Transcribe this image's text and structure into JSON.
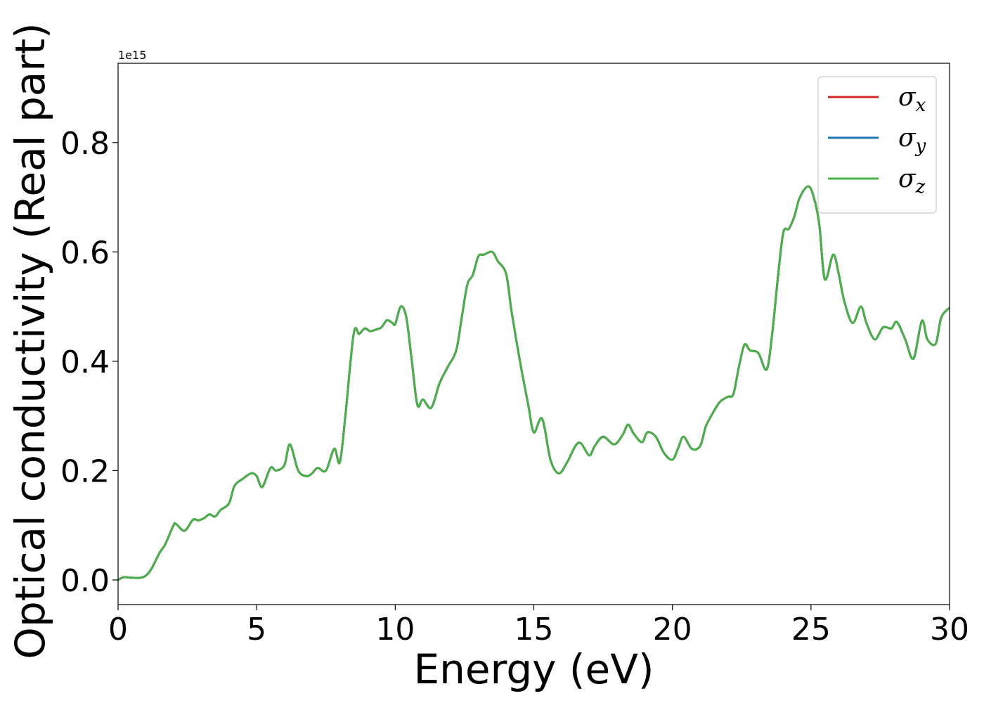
{
  "chart_data": {
    "type": "line",
    "title": "",
    "xlabel": "Energy (eV)",
    "ylabel": "Optical conductivity (Real part)",
    "y_offset_label": "1e15",
    "xlim": [
      0,
      30
    ],
    "ylim": [
      -0.045,
      0.945
    ],
    "xticks": [
      0,
      5,
      10,
      15,
      20,
      25,
      30
    ],
    "xtick_labels": [
      "0",
      "5",
      "10",
      "15",
      "20",
      "25",
      "30"
    ],
    "yticks": [
      0.0,
      0.2,
      0.4,
      0.6,
      0.8
    ],
    "ytick_labels": [
      "0.0",
      "0.2",
      "0.4",
      "0.6",
      "0.8"
    ],
    "grid": false,
    "legend_position": "top-right",
    "x": [
      0,
      0.2,
      0.5,
      0.8,
      1.0,
      1.2,
      1.5,
      1.7,
      2.0,
      2.1,
      2.4,
      2.7,
      2.9,
      3.1,
      3.3,
      3.5,
      3.7,
      4.0,
      4.2,
      4.5,
      4.8,
      5.0,
      5.2,
      5.5,
      5.7,
      6.0,
      6.2,
      6.5,
      6.8,
      7.0,
      7.2,
      7.5,
      7.8,
      8.0,
      8.2,
      8.5,
      8.7,
      8.9,
      9.1,
      9.3,
      9.5,
      9.7,
      9.9,
      10.0,
      10.2,
      10.4,
      10.6,
      10.8,
      11.0,
      11.3,
      11.6,
      11.9,
      12.2,
      12.4,
      12.6,
      12.8,
      13.0,
      13.2,
      13.5,
      13.7,
      14.0,
      14.2,
      14.5,
      14.8,
      15.0,
      15.3,
      15.6,
      15.9,
      16.2,
      16.5,
      16.7,
      17.0,
      17.2,
      17.5,
      17.9,
      18.2,
      18.4,
      18.6,
      18.9,
      19.1,
      19.4,
      19.7,
      20.0,
      20.2,
      20.4,
      20.7,
      21.0,
      21.2,
      21.4,
      21.7,
      22.0,
      22.2,
      22.4,
      22.6,
      22.8,
      23.1,
      23.4,
      23.6,
      23.8,
      24.0,
      24.2,
      24.4,
      24.6,
      24.9,
      25.1,
      25.3,
      25.5,
      25.8,
      26.0,
      26.2,
      26.5,
      26.8,
      27.0,
      27.3,
      27.6,
      27.9,
      28.1,
      28.4,
      28.7,
      29.0,
      29.2,
      29.5,
      29.7,
      30.0
    ],
    "series": [
      {
        "name": "σx",
        "color": "#d62728",
        "values": [
          0.0,
          0.005,
          0.004,
          0.004,
          0.008,
          0.02,
          0.05,
          0.065,
          0.1,
          0.102,
          0.09,
          0.11,
          0.109,
          0.113,
          0.12,
          0.116,
          0.128,
          0.14,
          0.172,
          0.185,
          0.195,
          0.19,
          0.17,
          0.205,
          0.2,
          0.21,
          0.248,
          0.2,
          0.19,
          0.195,
          0.205,
          0.2,
          0.24,
          0.215,
          0.3,
          0.45,
          0.45,
          0.46,
          0.455,
          0.458,
          0.462,
          0.475,
          0.47,
          0.468,
          0.5,
          0.48,
          0.4,
          0.32,
          0.33,
          0.315,
          0.36,
          0.39,
          0.42,
          0.48,
          0.54,
          0.558,
          0.592,
          0.595,
          0.6,
          0.583,
          0.56,
          0.49,
          0.4,
          0.32,
          0.27,
          0.295,
          0.22,
          0.195,
          0.215,
          0.245,
          0.25,
          0.228,
          0.245,
          0.262,
          0.248,
          0.265,
          0.284,
          0.268,
          0.252,
          0.27,
          0.262,
          0.232,
          0.22,
          0.24,
          0.262,
          0.24,
          0.245,
          0.28,
          0.3,
          0.325,
          0.335,
          0.34,
          0.39,
          0.43,
          0.42,
          0.415,
          0.385,
          0.45,
          0.55,
          0.635,
          0.642,
          0.665,
          0.7,
          0.72,
          0.7,
          0.65,
          0.55,
          0.595,
          0.56,
          0.51,
          0.47,
          0.5,
          0.47,
          0.44,
          0.462,
          0.46,
          0.472,
          0.44,
          0.405,
          0.474,
          0.44,
          0.432,
          0.48,
          0.498
        ]
      },
      {
        "name": "σy",
        "color": "#1f77b4",
        "values": [
          0.0,
          0.005,
          0.004,
          0.004,
          0.008,
          0.02,
          0.05,
          0.065,
          0.1,
          0.102,
          0.09,
          0.11,
          0.109,
          0.113,
          0.12,
          0.116,
          0.128,
          0.14,
          0.172,
          0.185,
          0.195,
          0.19,
          0.17,
          0.205,
          0.2,
          0.21,
          0.248,
          0.2,
          0.19,
          0.195,
          0.205,
          0.2,
          0.24,
          0.215,
          0.3,
          0.45,
          0.45,
          0.46,
          0.455,
          0.458,
          0.462,
          0.475,
          0.47,
          0.468,
          0.5,
          0.48,
          0.4,
          0.32,
          0.33,
          0.315,
          0.36,
          0.39,
          0.42,
          0.48,
          0.54,
          0.558,
          0.592,
          0.595,
          0.6,
          0.583,
          0.56,
          0.49,
          0.4,
          0.32,
          0.27,
          0.295,
          0.22,
          0.195,
          0.215,
          0.245,
          0.25,
          0.228,
          0.245,
          0.262,
          0.248,
          0.265,
          0.284,
          0.268,
          0.252,
          0.27,
          0.262,
          0.232,
          0.22,
          0.24,
          0.262,
          0.24,
          0.245,
          0.28,
          0.3,
          0.325,
          0.335,
          0.34,
          0.39,
          0.43,
          0.42,
          0.415,
          0.385,
          0.45,
          0.55,
          0.635,
          0.642,
          0.665,
          0.7,
          0.72,
          0.7,
          0.65,
          0.55,
          0.595,
          0.56,
          0.51,
          0.47,
          0.5,
          0.47,
          0.44,
          0.462,
          0.46,
          0.472,
          0.44,
          0.405,
          0.474,
          0.44,
          0.432,
          0.48,
          0.498
        ]
      },
      {
        "name": "σz",
        "color": "#4daf4a",
        "values": [
          0.0,
          0.005,
          0.004,
          0.004,
          0.008,
          0.02,
          0.05,
          0.065,
          0.1,
          0.102,
          0.09,
          0.11,
          0.109,
          0.113,
          0.12,
          0.116,
          0.128,
          0.14,
          0.172,
          0.185,
          0.195,
          0.19,
          0.17,
          0.205,
          0.2,
          0.21,
          0.248,
          0.2,
          0.19,
          0.195,
          0.205,
          0.2,
          0.24,
          0.215,
          0.3,
          0.45,
          0.45,
          0.46,
          0.455,
          0.458,
          0.462,
          0.475,
          0.47,
          0.468,
          0.5,
          0.48,
          0.4,
          0.32,
          0.33,
          0.315,
          0.36,
          0.39,
          0.42,
          0.48,
          0.54,
          0.558,
          0.592,
          0.595,
          0.6,
          0.583,
          0.56,
          0.49,
          0.4,
          0.32,
          0.27,
          0.295,
          0.22,
          0.195,
          0.215,
          0.245,
          0.25,
          0.228,
          0.245,
          0.262,
          0.248,
          0.265,
          0.284,
          0.268,
          0.252,
          0.27,
          0.262,
          0.232,
          0.22,
          0.24,
          0.262,
          0.24,
          0.245,
          0.28,
          0.3,
          0.325,
          0.335,
          0.34,
          0.39,
          0.43,
          0.42,
          0.415,
          0.385,
          0.45,
          0.55,
          0.635,
          0.642,
          0.665,
          0.7,
          0.72,
          0.7,
          0.65,
          0.55,
          0.595,
          0.56,
          0.51,
          0.47,
          0.5,
          0.47,
          0.44,
          0.462,
          0.46,
          0.472,
          0.44,
          0.405,
          0.474,
          0.44,
          0.432,
          0.48,
          0.498
        ]
      }
    ]
  }
}
